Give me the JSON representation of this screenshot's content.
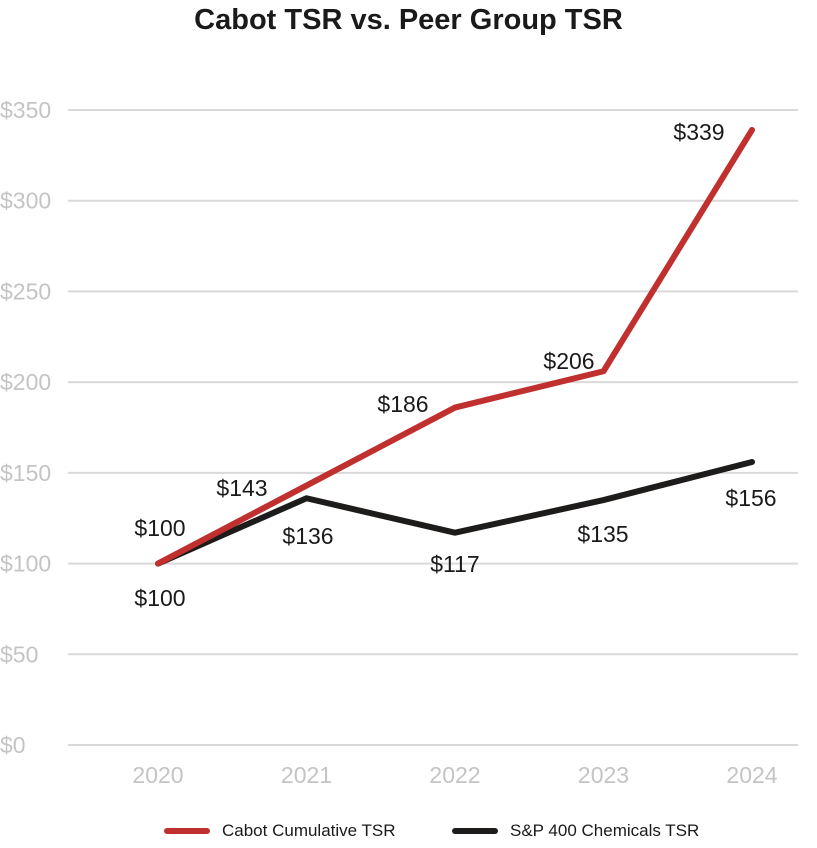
{
  "chart_data": {
    "type": "line",
    "title": "Cabot TSR vs. Peer Group TSR",
    "categories": [
      "2020",
      "2021",
      "2022",
      "2023",
      "2024"
    ],
    "ylim": [
      0,
      350
    ],
    "yticks": [
      0,
      50,
      100,
      150,
      200,
      250,
      300,
      350
    ],
    "ytick_labels": [
      "$0",
      "$50",
      "$100",
      "$150",
      "$200",
      "$250",
      "$300",
      "$350"
    ],
    "grid": true,
    "legend_position": "bottom",
    "series": [
      {
        "name": "Cabot Cumulative TSR",
        "color": "#c0302f",
        "values": [
          100,
          143,
          186,
          206,
          339
        ],
        "labels": [
          "$100",
          "$143",
          "$186",
          "$206",
          "$339"
        ]
      },
      {
        "name": "S&P 400 Chemicals TSR",
        "color": "#1e1b1b",
        "values": [
          100,
          136,
          117,
          135,
          156
        ],
        "labels": [
          "$100",
          "$136",
          "$117",
          "$135",
          "$156"
        ]
      }
    ]
  }
}
